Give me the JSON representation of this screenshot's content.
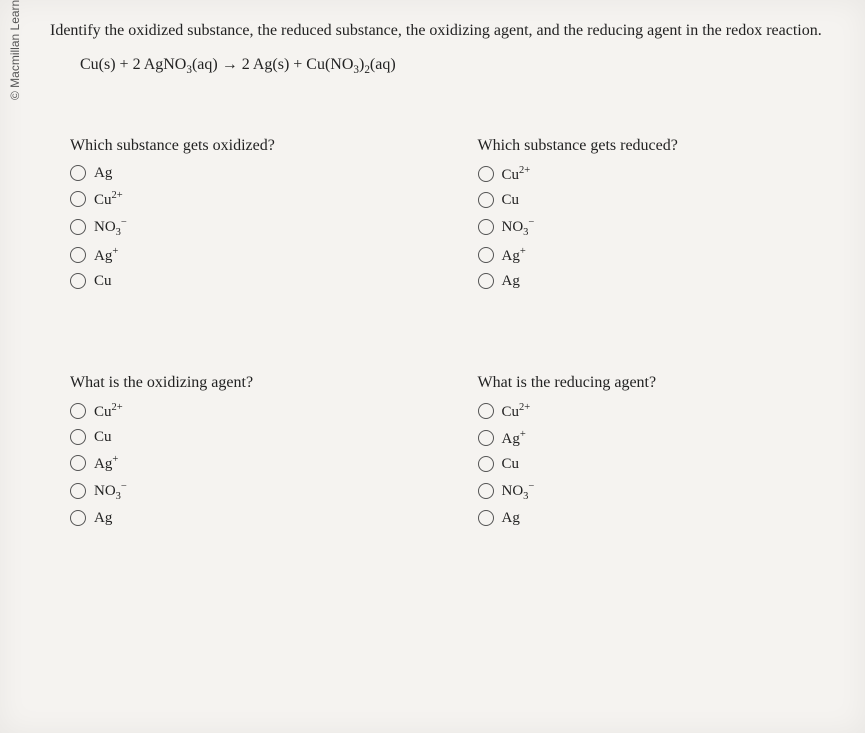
{
  "copyright": "© Macmillan Learning",
  "prompt": "Identify the oxidized substance, the reduced substance, the oxidizing agent, and the reducing agent in the redox reaction.",
  "equation_html": "Cu(s) + 2 AgNO<sub>3</sub>(aq) &rarr; 2 Ag(s) + Cu(NO<sub>3</sub>)<sub>2</sub>(aq)",
  "questions": [
    {
      "text": "Which substance gets oxidized?",
      "options": [
        "Ag",
        "Cu<sup>2+</sup>",
        "NO<sub>3</sub><sup>&minus;</sup>",
        "Ag<sup>+</sup>",
        "Cu"
      ]
    },
    {
      "text": "Which substance gets reduced?",
      "options": [
        "Cu<sup>2+</sup>",
        "Cu",
        "NO<sub>3</sub><sup>&minus;</sup>",
        "Ag<sup>+</sup>",
        "Ag"
      ]
    },
    {
      "text": "What is the oxidizing agent?",
      "options": [
        "Cu<sup>2+</sup>",
        "Cu",
        "Ag<sup>+</sup>",
        "NO<sub>3</sub><sup>&minus;</sup>",
        "Ag"
      ]
    },
    {
      "text": "What is the reducing agent?",
      "options": [
        "Cu<sup>2+</sup>",
        "Ag<sup>+</sup>",
        "Cu",
        "NO<sub>3</sub><sup>&minus;</sup>",
        "Ag"
      ]
    }
  ],
  "colors": {
    "background": "#f5f3f0",
    "text": "#222",
    "radio_border": "#555"
  }
}
